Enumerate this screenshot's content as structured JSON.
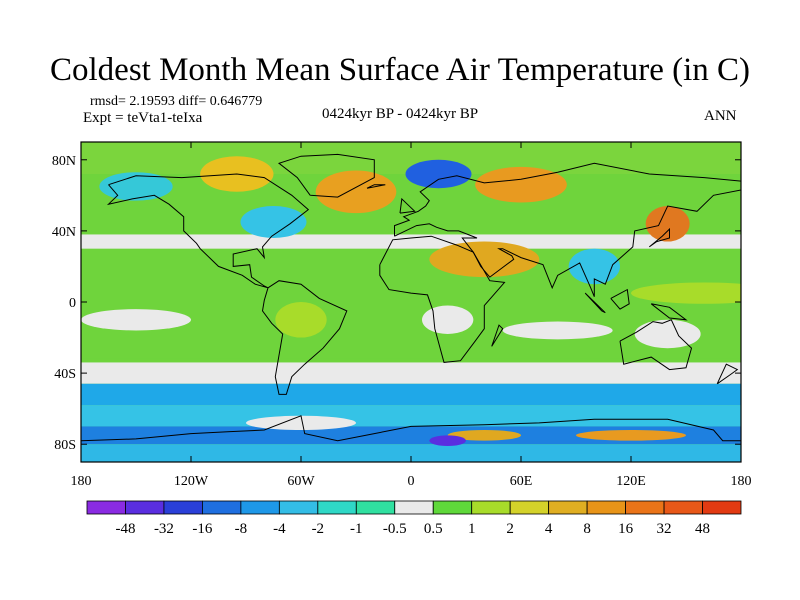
{
  "title": "Coldest Month Mean Surface Air Temperature (in C)",
  "stats": "rmsd= 2.19593 diff= 0.646779",
  "experiment": "Expt = teVta1-teIxa",
  "period": "0424kyr BP - 0424kyr BP",
  "season": "ANN",
  "lat_ticks": [
    {
      "lat": 80,
      "label": "80N"
    },
    {
      "lat": 40,
      "label": "40N"
    },
    {
      "lat": 0,
      "label": "0"
    },
    {
      "lat": -40,
      "label": "40S"
    },
    {
      "lat": -80,
      "label": "80S"
    }
  ],
  "lon_ticks": [
    {
      "lon": -180,
      "label": "180"
    },
    {
      "lon": -120,
      "label": "120W"
    },
    {
      "lon": -60,
      "label": "60W"
    },
    {
      "lon": 0,
      "label": "0"
    },
    {
      "lon": 60,
      "label": "60E"
    },
    {
      "lon": 120,
      "label": "120E"
    },
    {
      "lon": 180,
      "label": "180"
    }
  ],
  "colorbar": {
    "colors": [
      "#8a2be2",
      "#5a2ee0",
      "#2a3fd8",
      "#1f6fe0",
      "#1e98e8",
      "#33bde6",
      "#2fd8c6",
      "#30e0a0",
      "#eaeaea",
      "#5fd83a",
      "#a8dc2a",
      "#d4d22a",
      "#e0ae22",
      "#e89418",
      "#ea7418",
      "#e85818",
      "#e23a12"
    ],
    "labels": [
      "-48",
      "-32",
      "-16",
      "-8",
      "-4",
      "-2",
      "-1",
      "-0.5",
      "0.5",
      "1",
      "2",
      "4",
      "8",
      "16",
      "32",
      "48"
    ]
  },
  "map": {
    "background_color": "#6fd43c",
    "features": [
      {
        "type": "band",
        "lat_max": 90,
        "lat_min": 72,
        "color": "#7bd53d"
      },
      {
        "type": "band",
        "lat_max": 38,
        "lat_min": 30,
        "color": "#eaeaea"
      },
      {
        "type": "band",
        "lat_max": -20,
        "lat_min": -32,
        "color": "#6fd43c"
      },
      {
        "type": "band",
        "lat_max": -34,
        "lat_min": -46,
        "color": "#eaeaea"
      },
      {
        "type": "band",
        "lat_max": -46,
        "lat_min": -58,
        "color": "#1fa8e8"
      },
      {
        "type": "band",
        "lat_max": -58,
        "lat_min": -70,
        "color": "#35c3e6"
      },
      {
        "type": "band",
        "lat_max": -70,
        "lat_min": -80,
        "color": "#1e80e0"
      },
      {
        "type": "band",
        "lat_max": -80,
        "lat_min": -90,
        "color": "#2fb8e6"
      },
      {
        "type": "blob",
        "lon": -30,
        "lat": 62,
        "rlon": 22,
        "rlat": 12,
        "color": "#e8a020"
      },
      {
        "type": "blob",
        "lon": -150,
        "lat": 65,
        "rlon": 20,
        "rlat": 8,
        "color": "#35c8d8"
      },
      {
        "type": "blob",
        "lon": -95,
        "lat": 72,
        "rlon": 20,
        "rlat": 10,
        "color": "#e8c020"
      },
      {
        "type": "blob",
        "lon": 15,
        "lat": 72,
        "rlon": 18,
        "rlat": 8,
        "color": "#2060e0"
      },
      {
        "type": "blob",
        "lon": 60,
        "lat": 66,
        "rlon": 25,
        "rlat": 10,
        "color": "#e89a20"
      },
      {
        "type": "blob",
        "lon": -75,
        "lat": 45,
        "rlon": 18,
        "rlat": 9,
        "color": "#35c3e6"
      },
      {
        "type": "blob",
        "lon": 40,
        "lat": 24,
        "rlon": 30,
        "rlat": 10,
        "color": "#e0a820"
      },
      {
        "type": "blob",
        "lon": 140,
        "lat": 44,
        "rlon": 12,
        "rlat": 10,
        "color": "#e07820"
      },
      {
        "type": "blob",
        "lon": 100,
        "lat": 20,
        "rlon": 14,
        "rlat": 10,
        "color": "#35c3e6"
      },
      {
        "type": "blob",
        "lon": 160,
        "lat": 5,
        "rlon": 40,
        "rlat": 6,
        "color": "#a8dc2a"
      },
      {
        "type": "blob",
        "lon": -60,
        "lat": -10,
        "rlon": 14,
        "rlat": 10,
        "color": "#a8dc2a"
      },
      {
        "type": "blob",
        "lon": 20,
        "lat": -10,
        "rlon": 14,
        "rlat": 8,
        "color": "#eaeaea"
      },
      {
        "type": "blob",
        "lon": 80,
        "lat": -16,
        "rlon": 30,
        "rlat": 5,
        "color": "#eaeaea"
      },
      {
        "type": "blob",
        "lon": 140,
        "lat": -18,
        "rlon": 18,
        "rlat": 8,
        "color": "#eaeaea"
      },
      {
        "type": "blob",
        "lon": -150,
        "lat": -10,
        "rlon": 30,
        "rlat": 6,
        "color": "#eaeaea"
      },
      {
        "type": "blob",
        "lon": -60,
        "lat": -68,
        "rlon": 30,
        "rlat": 4,
        "color": "#eaeaea"
      },
      {
        "type": "blob",
        "lon": 40,
        "lat": -75,
        "rlon": 20,
        "rlat": 3,
        "color": "#e0a820"
      },
      {
        "type": "blob",
        "lon": 120,
        "lat": -75,
        "rlon": 30,
        "rlat": 3,
        "color": "#e89a20"
      },
      {
        "type": "blob",
        "lon": 20,
        "lat": -78,
        "rlon": 10,
        "rlat": 3,
        "color": "#5a2ee0"
      }
    ],
    "coastlines": [
      [
        [
          -165,
          66
        ],
        [
          -150,
          71
        ],
        [
          -125,
          70
        ],
        [
          -95,
          72
        ],
        [
          -80,
          70
        ],
        [
          -65,
          60
        ],
        [
          -56,
          52
        ],
        [
          -66,
          44
        ],
        [
          -76,
          37
        ],
        [
          -81,
          31
        ],
        [
          -80,
          25
        ],
        [
          -84,
          30
        ],
        [
          -97,
          27
        ],
        [
          -97,
          20
        ],
        [
          -88,
          21
        ],
        [
          -87,
          14
        ],
        [
          -80,
          9
        ],
        [
          -78,
          8
        ],
        [
          -85,
          10
        ],
        [
          -92,
          15
        ],
        [
          -105,
          20
        ],
        [
          -115,
          30
        ],
        [
          -117,
          33
        ],
        [
          -124,
          40
        ],
        [
          -124,
          48
        ],
        [
          -132,
          55
        ],
        [
          -140,
          60
        ],
        [
          -152,
          58
        ],
        [
          -165,
          55
        ],
        [
          -160,
          60
        ],
        [
          -165,
          66
        ]
      ],
      [
        [
          -78,
          8
        ],
        [
          -72,
          12
        ],
        [
          -60,
          10
        ],
        [
          -50,
          2
        ],
        [
          -35,
          -5
        ],
        [
          -39,
          -15
        ],
        [
          -48,
          -26
        ],
        [
          -58,
          -35
        ],
        [
          -65,
          -42
        ],
        [
          -68,
          -52
        ],
        [
          -72,
          -52
        ],
        [
          -74,
          -42
        ],
        [
          -72,
          -30
        ],
        [
          -70,
          -18
        ],
        [
          -76,
          -12
        ],
        [
          -81,
          -5
        ],
        [
          -80,
          1
        ],
        [
          -78,
          8
        ]
      ],
      [
        [
          -55,
          60
        ],
        [
          -40,
          59
        ],
        [
          -20,
          70
        ],
        [
          -20,
          80
        ],
        [
          -40,
          83
        ],
        [
          -60,
          82
        ],
        [
          -72,
          78
        ],
        [
          -62,
          70
        ],
        [
          -55,
          60
        ]
      ],
      [
        [
          -17,
          21
        ],
        [
          -17,
          15
        ],
        [
          -12,
          7
        ],
        [
          0,
          5
        ],
        [
          9,
          4
        ],
        [
          12,
          -5
        ],
        [
          13,
          -15
        ],
        [
          18,
          -34
        ],
        [
          27,
          -33
        ],
        [
          35,
          -22
        ],
        [
          40,
          -15
        ],
        [
          40,
          -2
        ],
        [
          51,
          11
        ],
        [
          43,
          12
        ],
        [
          34,
          28
        ],
        [
          25,
          32
        ],
        [
          11,
          37
        ],
        [
          0,
          36
        ],
        [
          -10,
          35
        ],
        [
          -17,
          21
        ]
      ],
      [
        [
          -9,
          37
        ],
        [
          -9,
          43
        ],
        [
          -1,
          46
        ],
        [
          -4,
          48
        ],
        [
          4,
          51
        ],
        [
          8,
          54
        ],
        [
          10,
          57
        ],
        [
          5,
          62
        ],
        [
          15,
          69
        ],
        [
          25,
          71
        ],
        [
          40,
          67
        ],
        [
          60,
          69
        ],
        [
          80,
          73
        ],
        [
          100,
          78
        ],
        [
          130,
          72
        ],
        [
          160,
          70
        ],
        [
          180,
          68
        ],
        [
          180,
          63
        ],
        [
          165,
          60
        ],
        [
          156,
          51
        ],
        [
          140,
          54
        ],
        [
          135,
          43
        ],
        [
          122,
          40
        ],
        [
          121,
          31
        ],
        [
          110,
          21
        ],
        [
          106,
          10
        ],
        [
          100,
          13
        ],
        [
          100,
          3
        ],
        [
          98,
          8
        ],
        [
          92,
          22
        ],
        [
          80,
          15
        ],
        [
          77,
          8
        ],
        [
          72,
          21
        ],
        [
          60,
          25
        ],
        [
          50,
          30
        ],
        [
          48,
          30
        ],
        [
          55,
          26
        ],
        [
          56,
          24
        ],
        [
          43,
          14
        ],
        [
          38,
          20
        ],
        [
          34,
          28
        ],
        [
          28,
          36
        ],
        [
          36,
          36
        ],
        [
          26,
          40
        ],
        [
          20,
          40
        ],
        [
          14,
          42
        ],
        [
          10,
          44
        ],
        [
          3,
          43
        ],
        [
          -9,
          37
        ]
      ],
      [
        [
          114,
          -22
        ],
        [
          123,
          -17
        ],
        [
          132,
          -11
        ],
        [
          137,
          -12
        ],
        [
          142,
          -10
        ],
        [
          146,
          -19
        ],
        [
          153,
          -26
        ],
        [
          150,
          -37
        ],
        [
          141,
          -38
        ],
        [
          131,
          -31
        ],
        [
          116,
          -35
        ],
        [
          114,
          -22
        ]
      ],
      [
        [
          -180,
          -78
        ],
        [
          -150,
          -77
        ],
        [
          -120,
          -74
        ],
        [
          -100,
          -73
        ],
        [
          -80,
          -72
        ],
        [
          -60,
          -64
        ],
        [
          -58,
          -74
        ],
        [
          -40,
          -78
        ],
        [
          -20,
          -74
        ],
        [
          0,
          -70
        ],
        [
          40,
          -69
        ],
        [
          70,
          -68
        ],
        [
          100,
          -66
        ],
        [
          140,
          -66
        ],
        [
          165,
          -72
        ],
        [
          170,
          -78
        ],
        [
          180,
          -78
        ]
      ],
      [
        [
          -6,
          50
        ],
        [
          2,
          51
        ],
        [
          -2,
          55
        ],
        [
          -5,
          58
        ],
        [
          -6,
          50
        ]
      ],
      [
        [
          130,
          31
        ],
        [
          134,
          34
        ],
        [
          141,
          36
        ],
        [
          141,
          41
        ],
        [
          137,
          37
        ],
        [
          130,
          31
        ]
      ],
      [
        [
          95,
          5
        ],
        [
          104,
          -5
        ],
        [
          106,
          -6
        ],
        [
          100,
          0
        ],
        [
          95,
          5
        ]
      ],
      [
        [
          109,
          2
        ],
        [
          118,
          7
        ],
        [
          119,
          -1
        ],
        [
          114,
          -4
        ],
        [
          109,
          2
        ]
      ],
      [
        [
          131,
          -1
        ],
        [
          141,
          -3
        ],
        [
          150,
          -10
        ],
        [
          141,
          -9
        ],
        [
          131,
          -1
        ]
      ],
      [
        [
          44,
          -25
        ],
        [
          50,
          -15
        ],
        [
          48,
          -13
        ],
        [
          44,
          -25
        ]
      ],
      [
        [
          167,
          -46
        ],
        [
          174,
          -41
        ],
        [
          178,
          -38
        ],
        [
          172,
          -35
        ],
        [
          167,
          -46
        ]
      ],
      [
        [
          -24,
          64
        ],
        [
          -14,
          66
        ],
        [
          -20,
          66
        ],
        [
          -24,
          64
        ]
      ]
    ]
  }
}
